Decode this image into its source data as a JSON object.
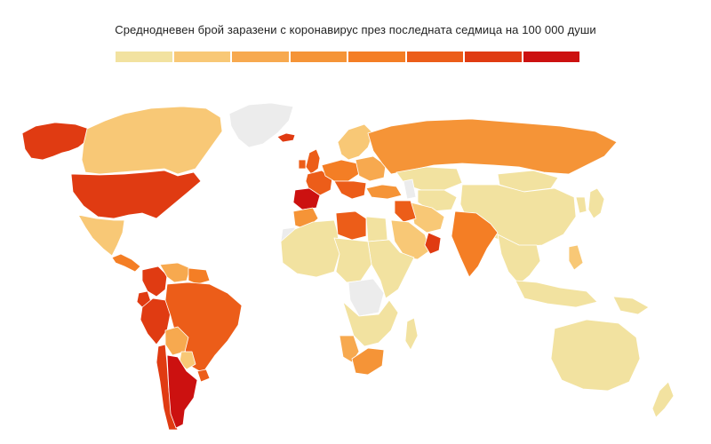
{
  "title": "Среднодневен брой заразени с коронавирус през последната седмица на 100 000 души",
  "legend": {
    "colors": [
      "#f2e2a0",
      "#f8c876",
      "#f7a94f",
      "#f59437",
      "#f47e25",
      "#ec5d19",
      "#e03b12",
      "#cc1110"
    ]
  },
  "nodata_color": "#ececec",
  "regions": [
    {
      "id": "alaska",
      "level": 6
    },
    {
      "id": "canada",
      "level": 1
    },
    {
      "id": "greenland",
      "level": -1
    },
    {
      "id": "iceland",
      "level": 6
    },
    {
      "id": "usa",
      "level": 6
    },
    {
      "id": "mexico",
      "level": 1
    },
    {
      "id": "central-america",
      "level": 4
    },
    {
      "id": "colombia",
      "level": 6
    },
    {
      "id": "venezuela",
      "level": 2
    },
    {
      "id": "guianas",
      "level": 4
    },
    {
      "id": "ecuador",
      "level": 6
    },
    {
      "id": "peru",
      "level": 6
    },
    {
      "id": "brazil",
      "level": 5
    },
    {
      "id": "bolivia",
      "level": 2
    },
    {
      "id": "paraguay",
      "level": 1
    },
    {
      "id": "chile",
      "level": 6
    },
    {
      "id": "argentina",
      "level": 7
    },
    {
      "id": "uruguay",
      "level": 5
    },
    {
      "id": "uk",
      "level": 5
    },
    {
      "id": "ireland",
      "level": 5
    },
    {
      "id": "scandinavia",
      "level": 1
    },
    {
      "id": "france",
      "level": 5
    },
    {
      "id": "iberia",
      "level": 7
    },
    {
      "id": "central-europe",
      "level": 4
    },
    {
      "id": "eastern-europe",
      "level": 2
    },
    {
      "id": "balkans",
      "level": 5
    },
    {
      "id": "russia",
      "level": 3
    },
    {
      "id": "turkey",
      "level": 3
    },
    {
      "id": "kazakhstan",
      "level": 0
    },
    {
      "id": "central-asia",
      "level": 0
    },
    {
      "id": "mongolia",
      "level": 0
    },
    {
      "id": "china",
      "level": 0
    },
    {
      "id": "india",
      "level": 4
    },
    {
      "id": "iran",
      "level": 1
    },
    {
      "id": "iraq",
      "level": 5
    },
    {
      "id": "arabia",
      "level": 1
    },
    {
      "id": "oman",
      "level": 6
    },
    {
      "id": "caspian",
      "level": -1
    },
    {
      "id": "japan",
      "level": 0
    },
    {
      "id": "korea",
      "level": 0
    },
    {
      "id": "se-asia",
      "level": 0
    },
    {
      "id": "philippines",
      "level": 1
    },
    {
      "id": "indonesia",
      "level": 0
    },
    {
      "id": "png",
      "level": 0
    },
    {
      "id": "australia",
      "level": 0
    },
    {
      "id": "new-zealand",
      "level": 0
    },
    {
      "id": "morocco",
      "level": 3
    },
    {
      "id": "w-sahara",
      "level": -1
    },
    {
      "id": "sahel",
      "level": 0
    },
    {
      "id": "libya",
      "level": 5
    },
    {
      "id": "egypt",
      "level": 0
    },
    {
      "id": "east-africa",
      "level": 0
    },
    {
      "id": "central-africa",
      "level": 0
    },
    {
      "id": "drc",
      "level": -1
    },
    {
      "id": "southern-africa",
      "level": 0
    },
    {
      "id": "namibia",
      "level": 2
    },
    {
      "id": "south-africa",
      "level": 3
    },
    {
      "id": "madagascar",
      "level": 0
    }
  ]
}
